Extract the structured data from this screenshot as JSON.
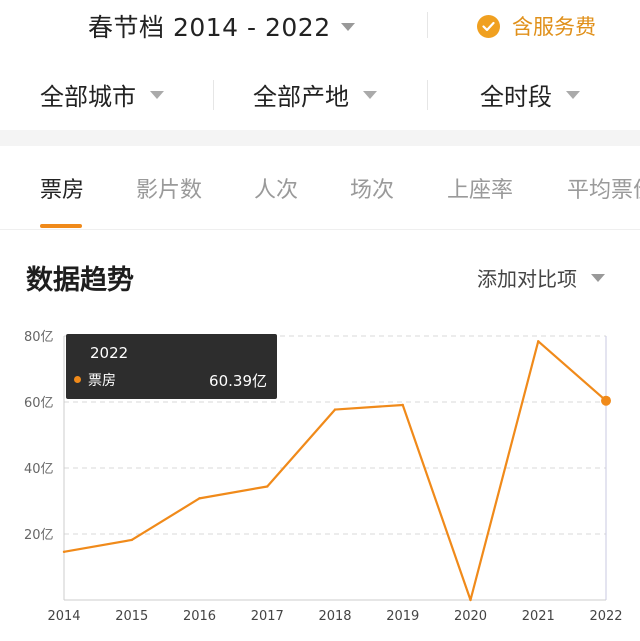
{
  "header": {
    "season_label": "春节档 2014 - 2022",
    "service_label": "含服务费",
    "accent_color": "#f08a1a"
  },
  "filters": [
    {
      "label": "全部城市"
    },
    {
      "label": "全部产地"
    },
    {
      "label": "全时段"
    }
  ],
  "tabs": [
    {
      "label": "票房",
      "active": true
    },
    {
      "label": "影片数",
      "active": false
    },
    {
      "label": "人次",
      "active": false
    },
    {
      "label": "场次",
      "active": false
    },
    {
      "label": "上座率",
      "active": false
    },
    {
      "label": "平均票价",
      "active": false
    }
  ],
  "section": {
    "title": "数据趋势",
    "compare_label": "添加对比项"
  },
  "tooltip": {
    "year": "2022",
    "label": "票房",
    "value": "60.39亿"
  },
  "chart_data": {
    "type": "line",
    "x": [
      "2014",
      "2015",
      "2016",
      "2017",
      "2018",
      "2019",
      "2020",
      "2021",
      "2022"
    ],
    "series": [
      {
        "name": "票房",
        "values": [
          14.6,
          18.2,
          30.8,
          34.4,
          57.7,
          59.1,
          0,
          78.4,
          60.39
        ],
        "color": "#f08a1a"
      }
    ],
    "y_ticks": [
      "20亿",
      "40亿",
      "60亿",
      "80亿"
    ],
    "y_tick_values": [
      20,
      40,
      60,
      80
    ],
    "ylim": [
      0,
      80
    ],
    "grid": true,
    "highlight_index": 8
  }
}
